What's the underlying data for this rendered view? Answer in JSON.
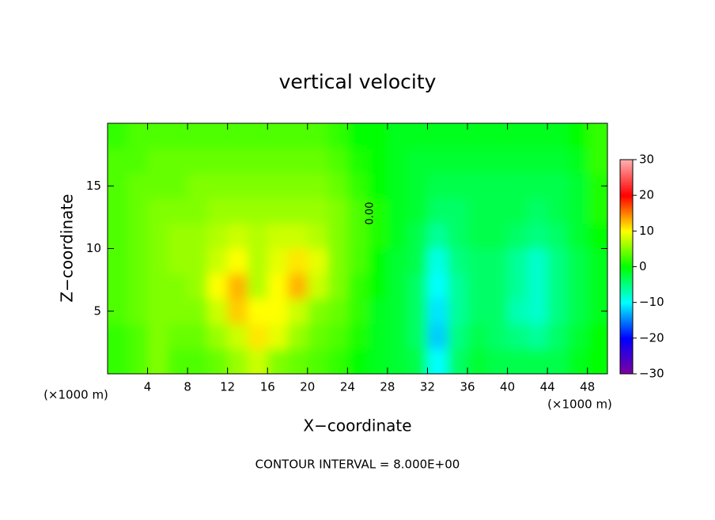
{
  "chart_data": {
    "type": "heatmap",
    "title": "vertical velocity",
    "xlabel": "X−coordinate",
    "ylabel": "Z−coordinate",
    "x_unit_left": "(×1000 m)",
    "x_unit_right": "(×1000 m)",
    "footer": "CONTOUR INTERVAL = 8.000E+00",
    "contour_label": "0.00",
    "xlim": [
      0,
      50
    ],
    "ylim": [
      0,
      20
    ],
    "xticks": [
      4,
      8,
      12,
      16,
      20,
      24,
      28,
      32,
      36,
      40,
      44,
      48
    ],
    "yticks": [
      5,
      10,
      15
    ],
    "x": [
      1,
      3,
      5,
      7,
      9,
      11,
      13,
      15,
      17,
      19,
      21,
      23,
      25,
      27,
      29,
      31,
      33,
      35,
      37,
      39,
      41,
      43,
      45,
      47,
      49
    ],
    "y": [
      1,
      3,
      5,
      7,
      9,
      11,
      13,
      15,
      17,
      19
    ],
    "values": [
      [
        2,
        3,
        5,
        3,
        3,
        4,
        6,
        8,
        5,
        4,
        3,
        2,
        0,
        -1,
        -2,
        -3,
        -10,
        -4,
        -2,
        -3,
        -3,
        -3,
        -3,
        -1,
        0
      ],
      [
        2,
        3,
        5,
        4,
        4,
        6,
        8,
        11,
        9,
        6,
        4,
        3,
        1,
        -1,
        -2,
        -4,
        -12,
        -5,
        -3,
        -4,
        -5,
        -6,
        -4,
        -2,
        0
      ],
      [
        3,
        4,
        5,
        5,
        5,
        8,
        12,
        10,
        10,
        8,
        5,
        4,
        2,
        -1,
        -2,
        -4,
        -11,
        -6,
        -4,
        -4,
        -7,
        -8,
        -5,
        -3,
        -1
      ],
      [
        3,
        4,
        5,
        5,
        6,
        10,
        13,
        7,
        10,
        13,
        8,
        5,
        2,
        0,
        -2,
        -4,
        -10,
        -6,
        -4,
        -4,
        -6,
        -8,
        -5,
        -3,
        -1
      ],
      [
        3,
        4,
        5,
        6,
        6,
        8,
        10,
        7,
        9,
        11,
        9,
        5,
        3,
        0,
        -2,
        -3,
        -9,
        -5,
        -4,
        -4,
        -6,
        -8,
        -5,
        -3,
        -1
      ],
      [
        3,
        4,
        5,
        6,
        6,
        7,
        8,
        7,
        8,
        8,
        7,
        5,
        3,
        1,
        -1,
        -3,
        -6,
        -4,
        -3,
        -3,
        -4,
        -5,
        -4,
        -2,
        0
      ],
      [
        3,
        4,
        5,
        5,
        5,
        6,
        6,
        6,
        6,
        6,
        6,
        5,
        3,
        1,
        -1,
        -2,
        -4,
        -4,
        -3,
        -3,
        -3,
        -4,
        -3,
        -2,
        1
      ],
      [
        3,
        4,
        4,
        4,
        5,
        5,
        5,
        5,
        5,
        5,
        5,
        4,
        2,
        0,
        -1,
        -2,
        -3,
        -3,
        -3,
        -3,
        -3,
        -3,
        -3,
        -2,
        1
      ],
      [
        3,
        3,
        4,
        4,
        4,
        4,
        4,
        4,
        4,
        4,
        4,
        3,
        1,
        0,
        -1,
        -2,
        -2,
        -2,
        -2,
        -2,
        -2,
        -2,
        -2,
        -1,
        2
      ],
      [
        2,
        3,
        3,
        3,
        3,
        3,
        3,
        3,
        3,
        3,
        3,
        2,
        0,
        0,
        -1,
        -1,
        -1,
        -1,
        -1,
        -1,
        -1,
        -1,
        -1,
        0,
        2
      ]
    ],
    "clim": [
      -30,
      30
    ],
    "cticks": [
      {
        "value": 30,
        "label": "30"
      },
      {
        "value": 20,
        "label": "20"
      },
      {
        "value": 10,
        "label": "10"
      },
      0,
      {
        "value": -10,
        "label": "−10"
      },
      {
        "value": -20,
        "label": "−20"
      },
      {
        "value": -30,
        "label": "−30"
      }
    ],
    "colorscale": [
      "#8000a0",
      "#0000ff",
      "#00ffff",
      "#00ff00",
      "#ffff00",
      "#ff0000",
      "#ffb0b0"
    ]
  }
}
